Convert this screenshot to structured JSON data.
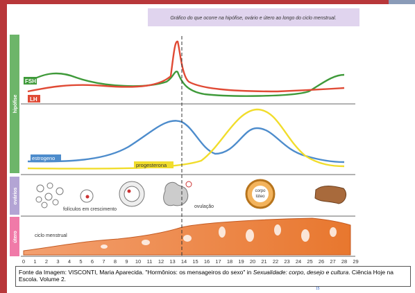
{
  "caption": "Gráfico do que ocorre na hipófise, ovário e útero ao longo do ciclo menstrual.",
  "sections": {
    "hipofise": "hipófise",
    "ovarios": "ovários",
    "utero": "útero"
  },
  "hormones": {
    "fsh": "FSH",
    "lh": "LH",
    "estrogen": "estrogeno",
    "progesterone": "progesterona"
  },
  "ovary_labels": {
    "follicles": "folículos em crescimento",
    "ovulation": "ovulação",
    "corpus_luteum": "corpo lúteo"
  },
  "uterus_label": "ciclo menstrual",
  "days": [
    0,
    1,
    2,
    3,
    4,
    5,
    6,
    7,
    8,
    9,
    10,
    11,
    12,
    13,
    14,
    15,
    16,
    17,
    18,
    19,
    20,
    21,
    22,
    23,
    24,
    25,
    26,
    27,
    28,
    29
  ],
  "source": {
    "prefix": "Fonte da Imagem: VISCONTI, Maria Aparecida. \"Hormônios: os mensageiros do sexo\" in ",
    "italic": "Sexualidade: corpo, desejo e cultura",
    "suffix": ". Ciência Hoje na Escola. Volume 2."
  },
  "page_number": "15"
}
